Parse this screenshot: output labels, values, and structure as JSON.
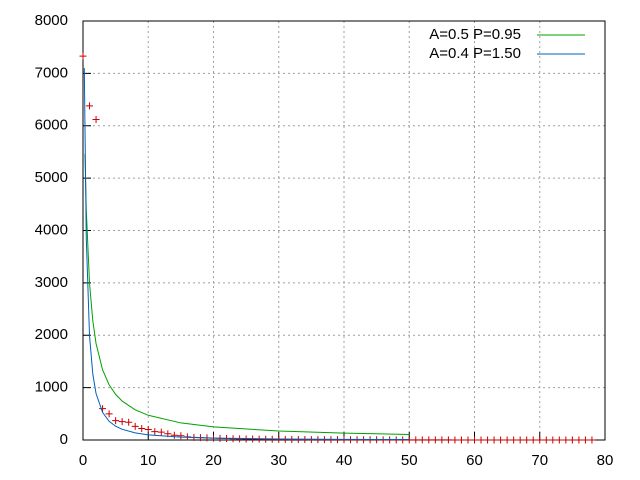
{
  "chart_data": {
    "type": "line",
    "xlim": [
      0,
      80
    ],
    "xticks": [
      0,
      10,
      20,
      30,
      40,
      50,
      60,
      70,
      80
    ],
    "ylim": [
      0,
      8000
    ],
    "yticks": [
      0,
      1000,
      2000,
      3000,
      4000,
      5000,
      6000,
      7000,
      8000
    ],
    "grid": true,
    "legend": "top-right",
    "series": [
      {
        "type": "scatter",
        "color": "#cc0000",
        "x": [
          0,
          1,
          2,
          3,
          4,
          5,
          6,
          7,
          8,
          9,
          10,
          11,
          12,
          13,
          14,
          15,
          16,
          17,
          18,
          19,
          20,
          21,
          22,
          23,
          24,
          25,
          26,
          27,
          28,
          29,
          30,
          31,
          32,
          33,
          34,
          35,
          36,
          37,
          38,
          39,
          40,
          41,
          42,
          43,
          44,
          45,
          46,
          47,
          48,
          49,
          50,
          51,
          52,
          53,
          54,
          55,
          56,
          57,
          58,
          59,
          60,
          61,
          62,
          63,
          64,
          65,
          66,
          67,
          68,
          69,
          70,
          71,
          72,
          73,
          74,
          75,
          76,
          77,
          78
        ],
        "values": [
          7330,
          6380,
          6120,
          600,
          500,
          370,
          350,
          340,
          260,
          220,
          200,
          160,
          150,
          120,
          90,
          80,
          60,
          50,
          45,
          40,
          35,
          30,
          28,
          25,
          22,
          20,
          18,
          16,
          15,
          14,
          12,
          11,
          10,
          9,
          9,
          8,
          7,
          7,
          6,
          6,
          5,
          5,
          5,
          4,
          4,
          4,
          3,
          3,
          3,
          3,
          2,
          2,
          2,
          2,
          2,
          2,
          2,
          1,
          1,
          1,
          1,
          1,
          1,
          1,
          1,
          1,
          1,
          1,
          1,
          1,
          1,
          1,
          1,
          1,
          1,
          1,
          1,
          1,
          1
        ]
      },
      {
        "type": "line",
        "name": "A=0.5 P=0.95",
        "color": "#00a000",
        "x": [
          0.3,
          0.5,
          1,
          1.5,
          2,
          3,
          4,
          5,
          6,
          8,
          10,
          15,
          20,
          30,
          40,
          50
        ],
        "values": [
          5460,
          4400,
          2990,
          2280,
          1843,
          1339,
          1055,
          871,
          743,
          576,
          472,
          326,
          250,
          171,
          131,
          106
        ]
      },
      {
        "type": "line",
        "name": "A=0.4 P=1.50",
        "color": "#0060c0",
        "x": [
          0.2,
          0.5,
          1,
          1.5,
          2,
          3,
          4,
          5,
          6,
          8,
          10,
          15,
          20,
          30,
          40,
          50
        ],
        "values": [
          7100,
          3865,
          1992,
          1260,
          888,
          526,
          357,
          263,
          204,
          136,
          98,
          55,
          36,
          20,
          13,
          9
        ]
      }
    ]
  }
}
